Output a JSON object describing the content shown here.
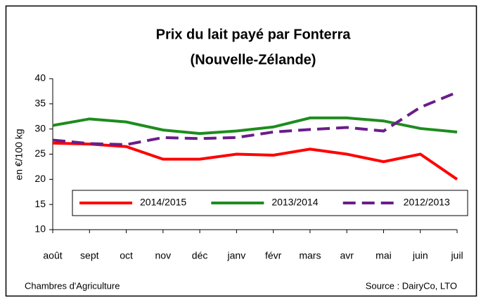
{
  "chart_data": {
    "type": "line",
    "title": [
      "Prix du lait payé par Fonterra",
      "(Nouvelle-Zélande)"
    ],
    "y_label": "en €/100 kg",
    "categories": [
      "août",
      "sept",
      "oct",
      "nov",
      "déc",
      "janv",
      "févr",
      "mars",
      "avr",
      "mai",
      "juin",
      "juil"
    ],
    "series": [
      {
        "name": "2014/2015",
        "color": "#ff0000",
        "dashed": false,
        "values": [
          27.2,
          27,
          26.5,
          24,
          24,
          25,
          24.8,
          26,
          25,
          23.5,
          25,
          20
        ]
      },
      {
        "name": "2013/2014",
        "color": "#1e8c1e",
        "dashed": false,
        "values": [
          30.7,
          32,
          31.4,
          29.8,
          29.1,
          29.6,
          30.4,
          32.2,
          32.2,
          31.6,
          30.1,
          29.4
        ]
      },
      {
        "name": "2012/2013",
        "color": "#6a1d8a",
        "dashed": true,
        "values": [
          27.8,
          27.1,
          26.9,
          28.3,
          28.1,
          28.3,
          29.4,
          29.9,
          30.3,
          29.6,
          34.3,
          37.3
        ]
      }
    ],
    "ylim": [
      10,
      40
    ],
    "yticks": [
      10,
      15,
      20,
      25,
      30,
      35,
      40
    ],
    "grid": false,
    "legend": "bottom",
    "footer_left": "Chambres d'Agriculture",
    "footer_right": "Source :  DairyCo, LTO"
  }
}
